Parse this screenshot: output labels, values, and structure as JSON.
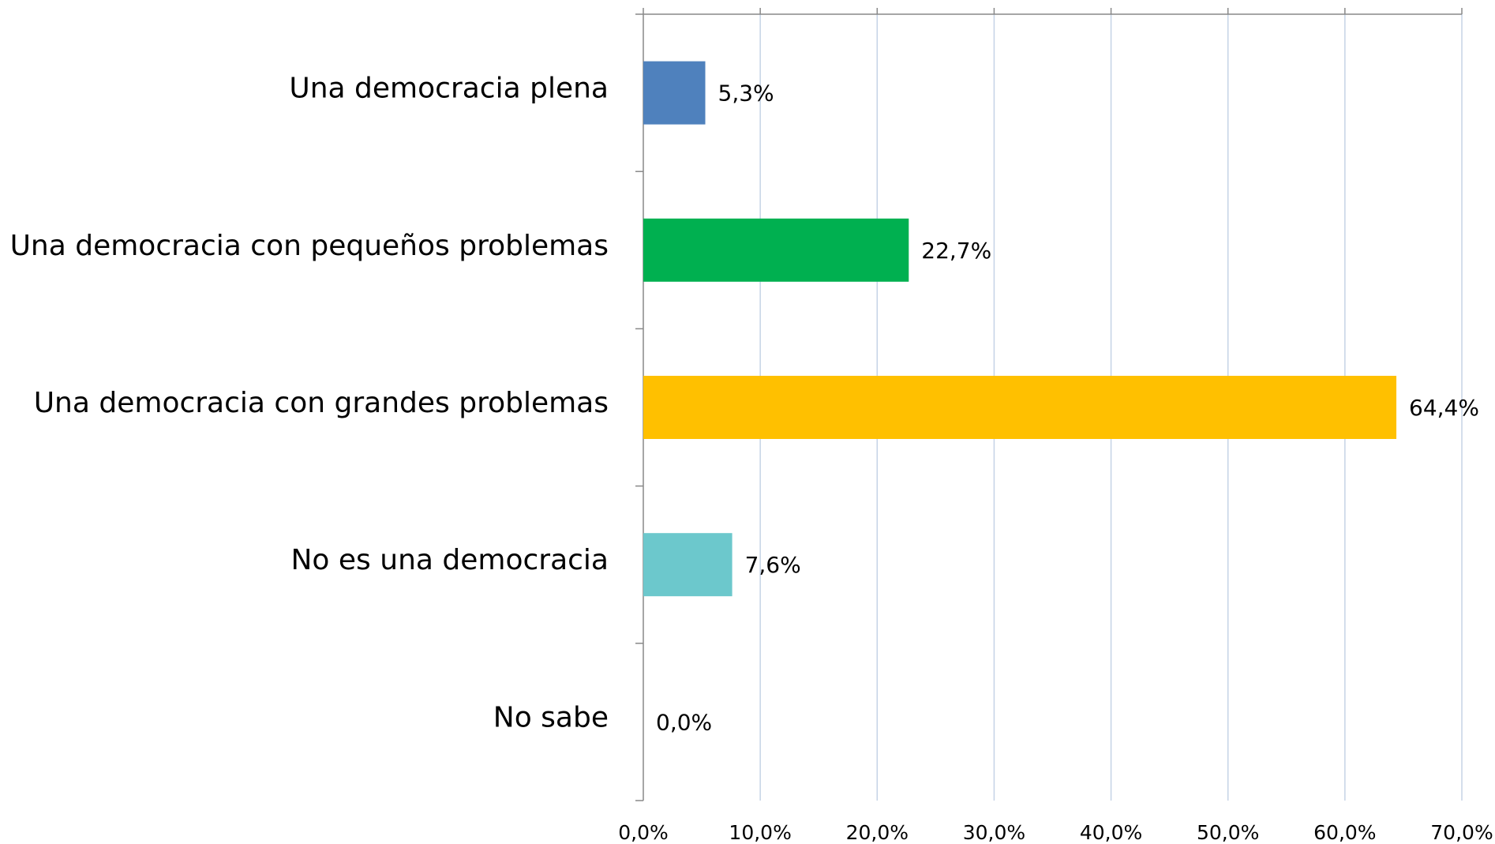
{
  "chart_data": {
    "type": "bar",
    "categories": [
      "Una democracia plena",
      "Una democracia con pequeños problemas",
      "Una democracia con grandes problemas",
      "No es una democracia",
      "No sabe"
    ],
    "values": [
      5.3,
      22.7,
      64.4,
      7.6,
      0
    ],
    "value_labels": [
      "5,3%",
      "22,7%",
      "64,4%",
      "7,6%",
      "0,0%"
    ],
    "colors": [
      "#4f81bd",
      "#00b050",
      "#ffc000",
      "#6cc8cc",
      null
    ],
    "xlim": [
      0,
      70
    ],
    "xticks": [
      {
        "value": 0,
        "label": "0,0%"
      },
      {
        "value": 10,
        "label": "10,0%"
      },
      {
        "value": 20,
        "label": "20,0%"
      },
      {
        "value": 30,
        "label": "30,0%"
      },
      {
        "value": 40,
        "label": "40,0%"
      },
      {
        "value": 50,
        "label": "50,0%"
      },
      {
        "value": 60,
        "label": "60,0%"
      },
      {
        "value": 70,
        "label": "70,0%"
      }
    ],
    "grid": true
  }
}
